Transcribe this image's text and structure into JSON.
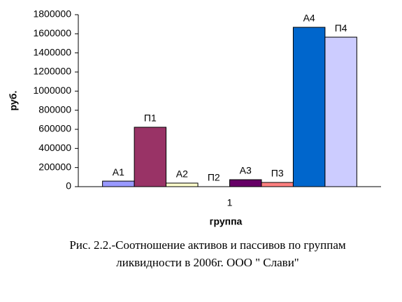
{
  "chart_data": {
    "type": "bar",
    "categories": [
      "1"
    ],
    "series": [
      {
        "name": "А1",
        "color": "#9999ff",
        "values": [
          58000
        ]
      },
      {
        "name": "П1",
        "color": "#993366",
        "values": [
          622000
        ]
      },
      {
        "name": "А2",
        "color": "#ffffcc",
        "values": [
          37000
        ]
      },
      {
        "name": "П2",
        "color": "#ccffff",
        "values": [
          0
        ]
      },
      {
        "name": "А3",
        "color": "#660066",
        "values": [
          73000
        ]
      },
      {
        "name": "П3",
        "color": "#ff8080",
        "values": [
          44000
        ]
      },
      {
        "name": "А4",
        "color": "#0066cc",
        "values": [
          1668000
        ]
      },
      {
        "name": "П4",
        "color": "#ccccff",
        "values": [
          1565000
        ]
      }
    ],
    "y_label": "руб.",
    "x_label": "группа",
    "ylim": [
      0,
      1800000
    ],
    "yticks": [
      0,
      200000,
      400000,
      600000,
      800000,
      1000000,
      1200000,
      1400000,
      1600000,
      1800000
    ],
    "caption": [
      "Рис. 2.2.-Соотношение активов и пассивов по группам",
      "ликвидности в 2006г. ООО \" Слави\""
    ]
  }
}
